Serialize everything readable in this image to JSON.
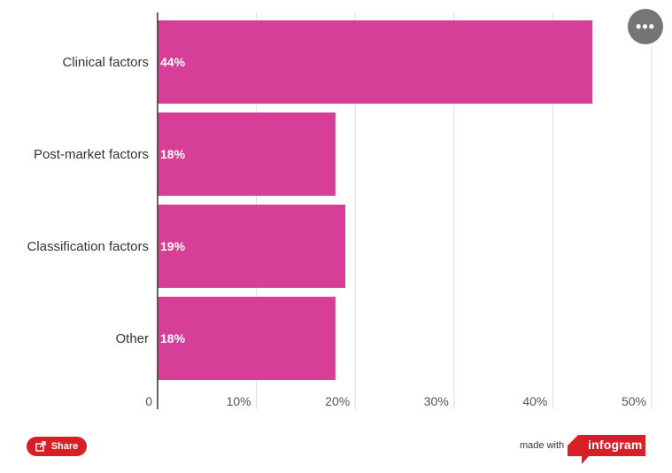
{
  "chart_data": {
    "type": "bar",
    "orientation": "horizontal",
    "categories": [
      "Clinical factors",
      "Post-market factors",
      "Classification factors",
      "Other"
    ],
    "values": [
      44,
      18,
      19,
      18
    ],
    "value_labels": [
      "44%",
      "18%",
      "19%",
      "18%"
    ],
    "xlim": [
      0,
      50
    ],
    "x_ticks": [
      "0",
      "10%",
      "20%",
      "30%",
      "40%",
      "50%"
    ],
    "grid": "vertical",
    "bar_color": "#d63e98"
  },
  "ui": {
    "menu_glyph": "•••",
    "share_label": "Share",
    "made_with_label": "made with",
    "brand_label": "infogram",
    "brand_color": "#d71f27"
  }
}
